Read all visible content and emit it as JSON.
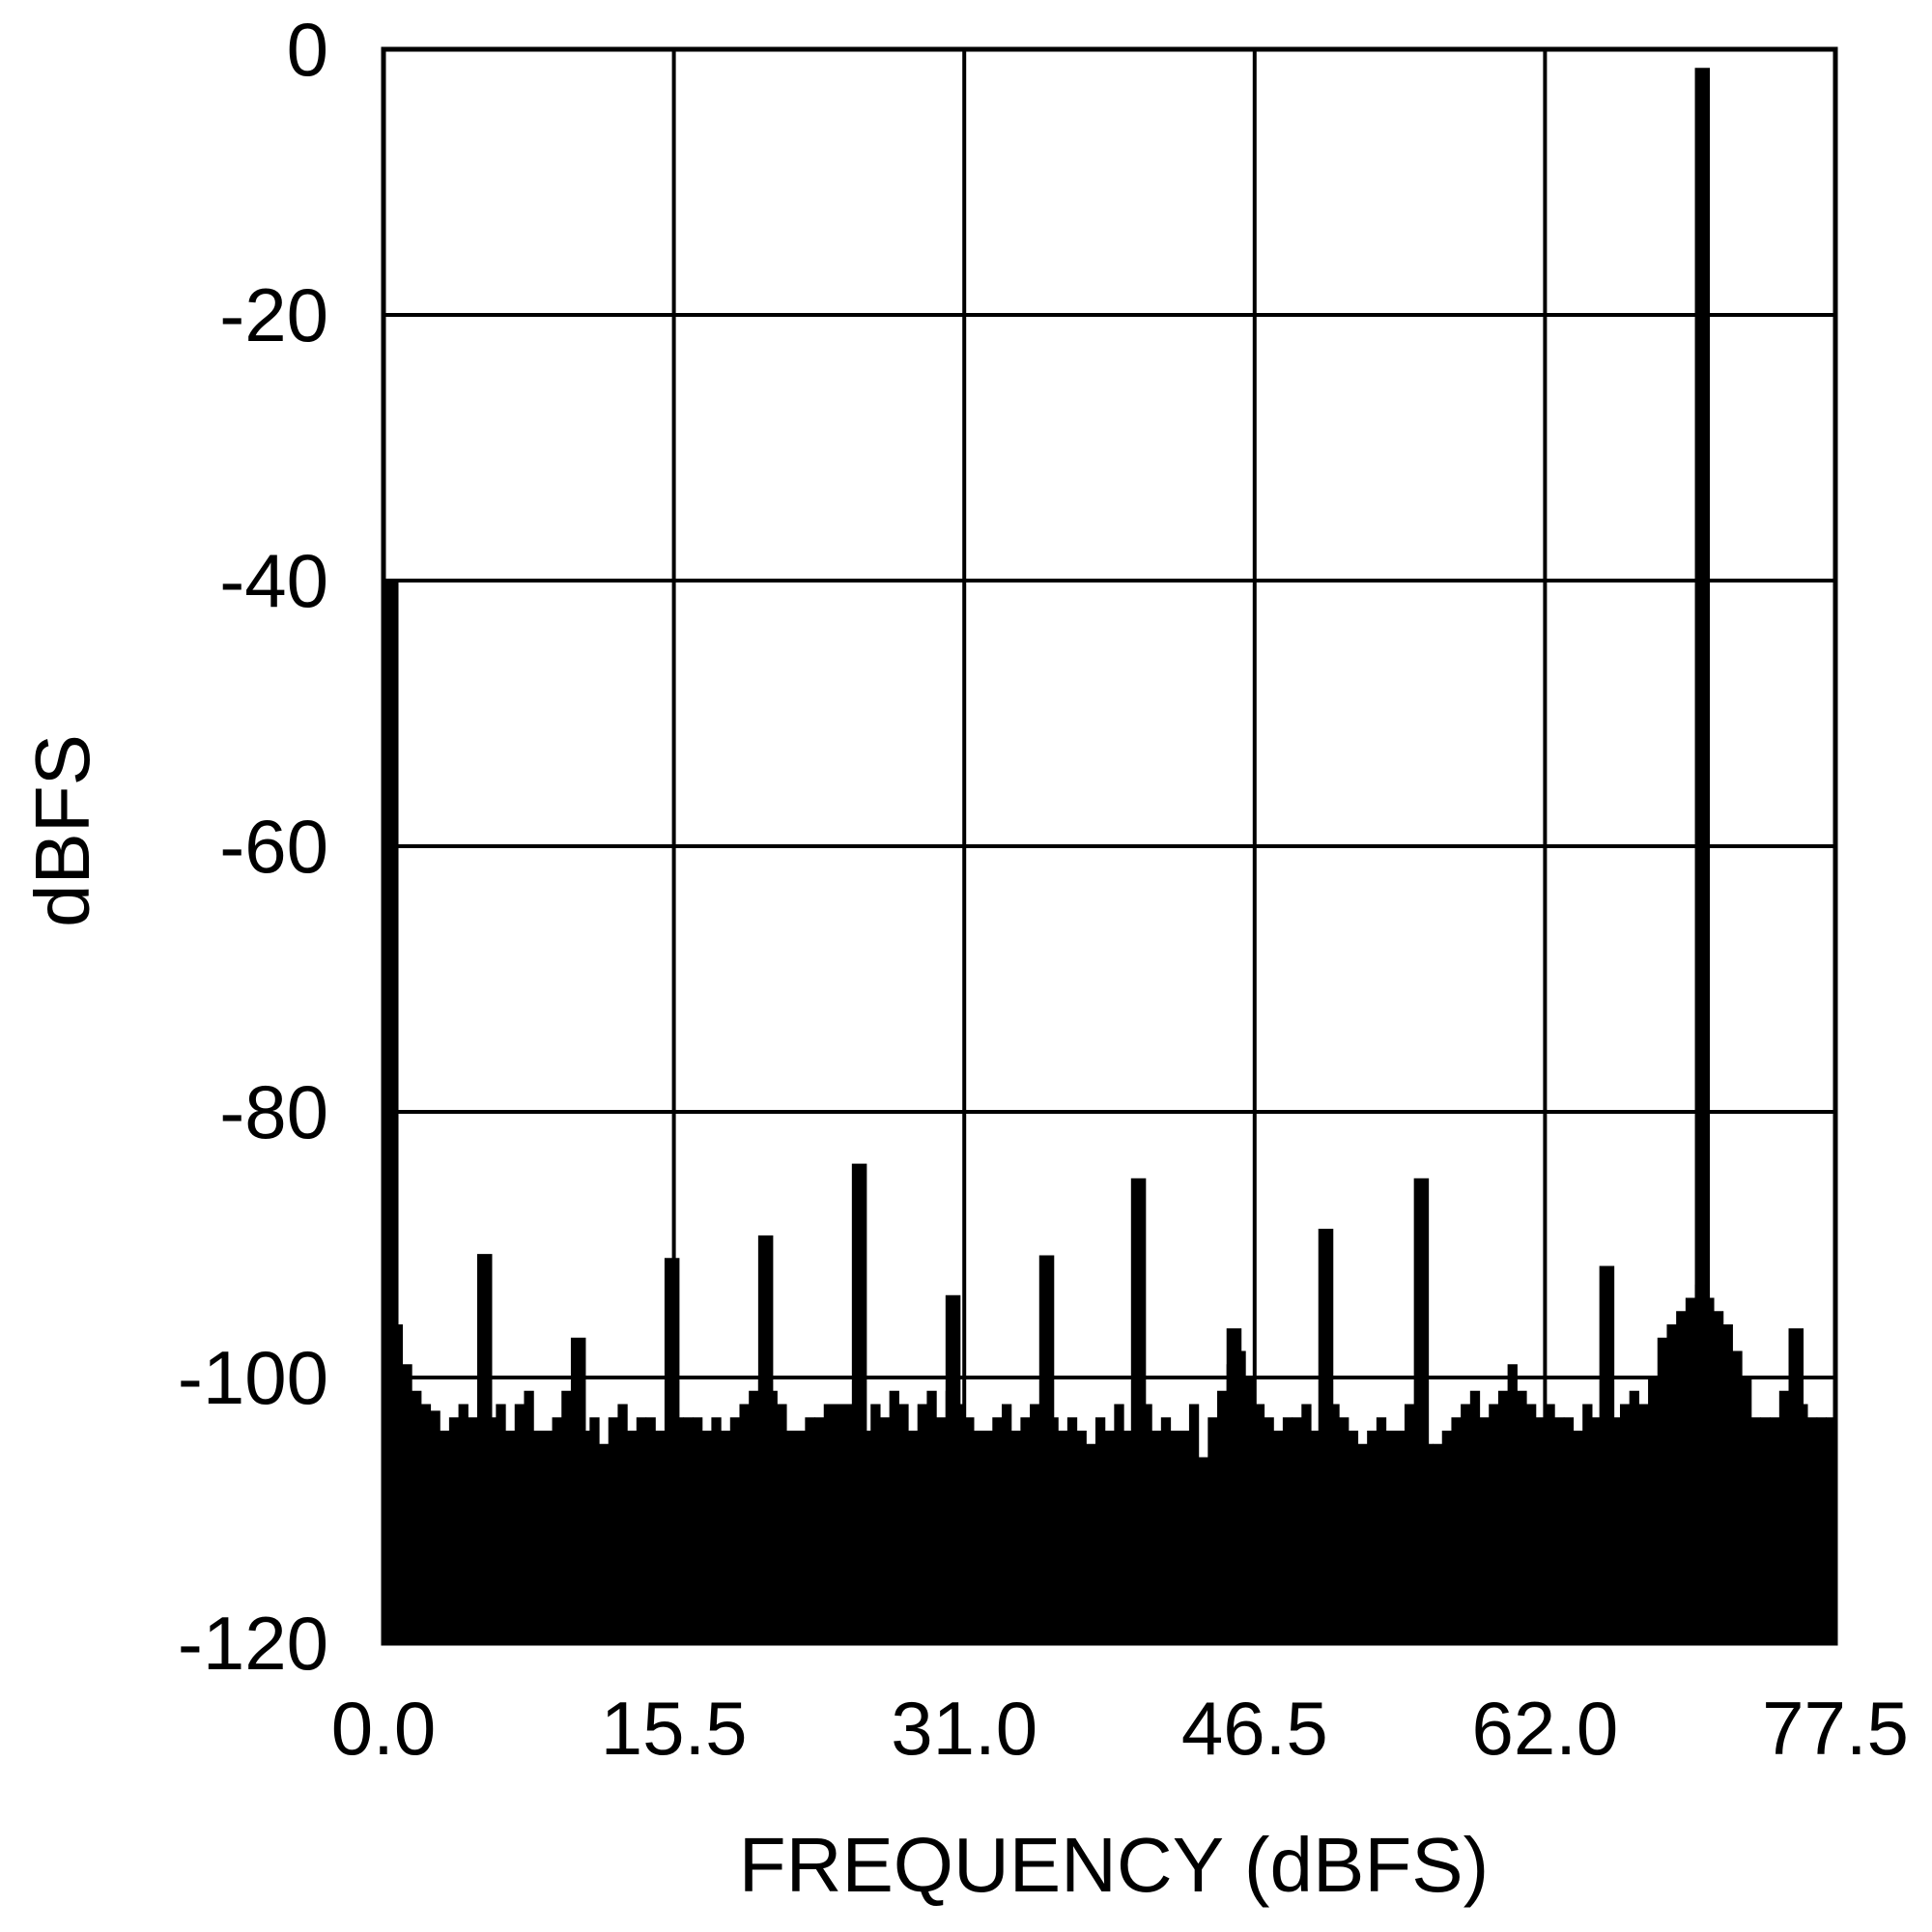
{
  "chart_data": {
    "type": "bar",
    "title": "",
    "xlabel": "FREQUENCY (dBFS)",
    "ylabel": "dBFS",
    "xlim": [
      0,
      77.5
    ],
    "ylim": [
      -120,
      0
    ],
    "grid": true,
    "x_ticks": [
      "0.0",
      "15.5",
      "31.0",
      "46.5",
      "62.0",
      "77.5"
    ],
    "x_tick_values": [
      0,
      15.5,
      31.0,
      46.5,
      62.0,
      77.5
    ],
    "y_ticks": [
      "0",
      "-20",
      "-40",
      "-60",
      "-80",
      "-100",
      "-120"
    ],
    "y_tick_values": [
      0,
      -20,
      -40,
      -60,
      -80,
      -100,
      -120
    ],
    "color": "#000000",
    "noise_floor": {
      "x_start": 0,
      "x_step": 0.5,
      "values": [
        -40,
        -96,
        -99,
        -101,
        -102,
        -102.5,
        -104,
        -103,
        -102,
        -103,
        -102,
        -103,
        -102,
        -104,
        -102,
        -101,
        -104,
        -104,
        -103,
        -101,
        -102,
        -104,
        -103,
        -105,
        -103,
        -102,
        -104,
        -103,
        -103,
        -104,
        -104,
        -103,
        -103,
        -103,
        -104,
        -103,
        -104,
        -103,
        -102,
        -101,
        -100,
        -101,
        -102,
        -104,
        -104,
        -103,
        -103,
        -102,
        -102,
        -102,
        -103,
        -104,
        -102,
        -103,
        -101,
        -102,
        -104,
        -102,
        -101,
        -103,
        -101,
        -102,
        -103,
        -104,
        -104,
        -103,
        -102,
        -104,
        -103,
        -102,
        -102,
        -103,
        -104,
        -103,
        -104,
        -105,
        -103,
        -104,
        -102,
        -104,
        -103,
        -102,
        -104,
        -103,
        -104,
        -104,
        -102,
        -106,
        -103,
        -101,
        -99,
        -98,
        -100,
        -102,
        -103,
        -104,
        -103,
        -103,
        -102,
        -104,
        -103,
        -102,
        -103,
        -104,
        -105,
        -104,
        -103,
        -104,
        -104,
        -102,
        -103,
        -105,
        -105,
        -104,
        -103,
        -102,
        -101,
        -103,
        -102,
        -101,
        -99,
        -101,
        -102,
        -103,
        -102,
        -103,
        -103,
        -104,
        -102,
        -103,
        -103,
        -103,
        -102,
        -101,
        -102,
        -100,
        -97,
        -96,
        -95,
        -94,
        -93,
        -94,
        -95,
        -96,
        -98,
        -100,
        -103,
        -103,
        -103,
        -101,
        -103,
        -102,
        -103,
        -103,
        -103,
        -103
      ]
    },
    "spurs": [
      {
        "x": 0.3,
        "y": -40
      },
      {
        "x": 5.4,
        "y": -90.7
      },
      {
        "x": 10.4,
        "y": -97
      },
      {
        "x": 15.4,
        "y": -91
      },
      {
        "x": 20.4,
        "y": -89.3
      },
      {
        "x": 25.4,
        "y": -83.9
      },
      {
        "x": 30.4,
        "y": -93.8
      },
      {
        "x": 35.4,
        "y": -90.8
      },
      {
        "x": 40.3,
        "y": -85
      },
      {
        "x": 45.4,
        "y": -96.3
      },
      {
        "x": 50.3,
        "y": -88.8
      },
      {
        "x": 55.4,
        "y": -85
      },
      {
        "x": 65.3,
        "y": -91.6
      },
      {
        "x": 70.4,
        "y": -1.4
      },
      {
        "x": 75.4,
        "y": -96.3
      }
    ]
  }
}
